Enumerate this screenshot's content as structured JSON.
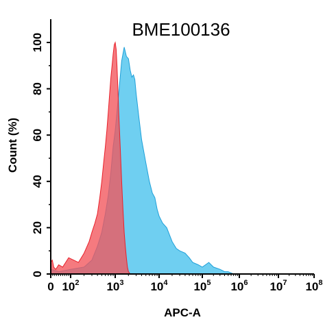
{
  "chart_data": {
    "type": "area",
    "title": "BME100136",
    "xlabel": "APC-A",
    "ylabel": "Count  (%)",
    "x_scale": "log",
    "xlim": [
      0,
      100000000
    ],
    "ylim": [
      0,
      100
    ],
    "x_ticks": [
      {
        "base": "0",
        "exp": ""
      },
      {
        "base": "10",
        "exp": "2"
      },
      {
        "base": "10",
        "exp": "3"
      },
      {
        "base": "10",
        "exp": "4"
      },
      {
        "base": "10",
        "exp": "5"
      },
      {
        "base": "10",
        "exp": "6"
      },
      {
        "base": "10",
        "exp": "7"
      },
      {
        "base": "10",
        "exp": "8"
      }
    ],
    "y_ticks": [
      "0",
      "20",
      "40",
      "60",
      "80",
      "100"
    ],
    "grid": false,
    "legend": "none",
    "series": [
      {
        "color": "#f2545b",
        "points": [
          [
            0,
            5
          ],
          [
            8,
            6
          ],
          [
            15,
            3
          ],
          [
            25,
            2
          ],
          [
            40,
            4
          ],
          [
            60,
            3
          ],
          [
            90,
            7
          ],
          [
            150,
            5
          ],
          [
            200,
            9
          ],
          [
            260,
            14
          ],
          [
            300,
            18
          ],
          [
            350,
            22
          ],
          [
            400,
            26
          ],
          [
            450,
            33
          ],
          [
            500,
            40
          ],
          [
            550,
            48
          ],
          [
            600,
            55
          ],
          [
            650,
            62
          ],
          [
            700,
            70
          ],
          [
            750,
            78
          ],
          [
            800,
            85
          ],
          [
            850,
            90
          ],
          [
            900,
            95
          ],
          [
            950,
            99
          ],
          [
            1000,
            100
          ],
          [
            1050,
            97
          ],
          [
            1100,
            90
          ],
          [
            1150,
            80
          ],
          [
            1200,
            70
          ],
          [
            1300,
            55
          ],
          [
            1400,
            40
          ],
          [
            1500,
            28
          ],
          [
            1600,
            18
          ],
          [
            1700,
            12
          ],
          [
            1800,
            7
          ],
          [
            1900,
            3
          ],
          [
            2000,
            1
          ],
          [
            2200,
            0
          ],
          [
            3000,
            0
          ]
        ]
      },
      {
        "color": "#56c7ee",
        "points": [
          [
            0,
            2
          ],
          [
            40,
            1
          ],
          [
            100,
            2
          ],
          [
            200,
            3
          ],
          [
            300,
            6
          ],
          [
            400,
            12
          ],
          [
            500,
            18
          ],
          [
            600,
            26
          ],
          [
            700,
            34
          ],
          [
            800,
            44
          ],
          [
            900,
            55
          ],
          [
            1000,
            62
          ],
          [
            1200,
            78
          ],
          [
            1400,
            92
          ],
          [
            1600,
            98
          ],
          [
            1800,
            94
          ],
          [
            2000,
            93
          ],
          [
            2200,
            88
          ],
          [
            2400,
            85
          ],
          [
            2600,
            86
          ],
          [
            2800,
            84
          ],
          [
            3000,
            78
          ],
          [
            3500,
            67
          ],
          [
            4000,
            58
          ],
          [
            5000,
            48
          ],
          [
            6000,
            40
          ],
          [
            7000,
            35
          ],
          [
            8000,
            33
          ],
          [
            9000,
            28
          ],
          [
            10000,
            25
          ],
          [
            12000,
            22
          ],
          [
            15000,
            20
          ],
          [
            20000,
            14
          ],
          [
            25000,
            11
          ],
          [
            30000,
            10
          ],
          [
            40000,
            9
          ],
          [
            50000,
            7
          ],
          [
            60000,
            5
          ],
          [
            80000,
            4
          ],
          [
            100000,
            3
          ],
          [
            150000,
            5
          ],
          [
            200000,
            3
          ],
          [
            300000,
            2
          ],
          [
            400000,
            1
          ],
          [
            500000,
            1
          ],
          [
            700000,
            0
          ],
          [
            1000000,
            0
          ]
        ]
      }
    ]
  }
}
